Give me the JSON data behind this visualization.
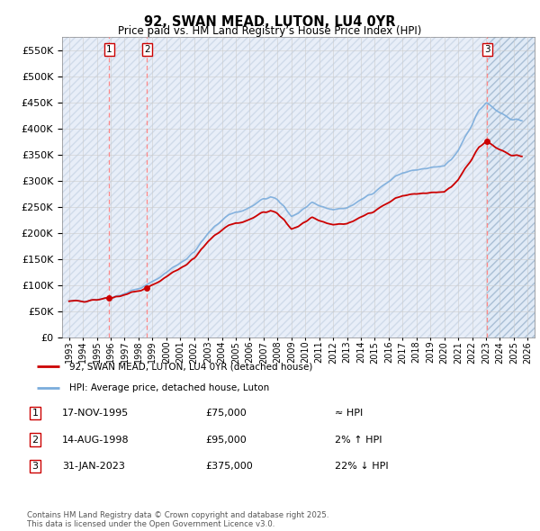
{
  "title": "92, SWAN MEAD, LUTON, LU4 0YR",
  "subtitle": "Price paid vs. HM Land Registry’s House Price Index (HPI)",
  "ytick_values": [
    0,
    50000,
    100000,
    150000,
    200000,
    250000,
    300000,
    350000,
    400000,
    450000,
    500000,
    550000
  ],
  "ylim": [
    0,
    575000
  ],
  "xlim_start": 1992.5,
  "xlim_end": 2026.5,
  "purchases": [
    {
      "year": 1995.88,
      "price": 75000,
      "label": "1"
    },
    {
      "year": 1998.62,
      "price": 95000,
      "label": "2"
    },
    {
      "year": 2023.08,
      "price": 375000,
      "label": "3"
    }
  ],
  "legend_entries": [
    "92, SWAN MEAD, LUTON, LU4 0YR (detached house)",
    "HPI: Average price, detached house, Luton"
  ],
  "table_rows": [
    {
      "num": "1",
      "date": "17-NOV-1995",
      "price": "£75,000",
      "rel": "≈ HPI"
    },
    {
      "num": "2",
      "date": "14-AUG-1998",
      "price": "£95,000",
      "rel": "2% ↑ HPI"
    },
    {
      "num": "3",
      "date": "31-JAN-2023",
      "price": "£375,000",
      "rel": "22% ↓ HPI"
    }
  ],
  "footer": "Contains HM Land Registry data © Crown copyright and database right 2025.\nThis data is licensed under the Open Government Licence v3.0.",
  "hpi_color": "#7aacdc",
  "price_color": "#cc0000",
  "grid_color": "#cccccc",
  "vline_color": "#ff8888",
  "hatch_bg_color": "#dce8f5",
  "hatch_future_color": "#dce8f5",
  "last_purchase_year": 2023.08
}
